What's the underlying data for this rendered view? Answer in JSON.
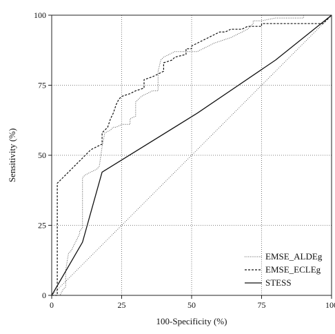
{
  "chart_data": {
    "type": "line",
    "title": "",
    "xlabel": "100-Specificity (%)",
    "ylabel": "Sensitivity (%)",
    "xlim": [
      0,
      100
    ],
    "ylim": [
      0,
      100
    ],
    "xticks": [
      "0",
      "25",
      "50",
      "75",
      "100"
    ],
    "yticks": [
      "0",
      "25",
      "50",
      "75",
      "100"
    ],
    "grid": true,
    "legend_position": "bottom-right",
    "reference_line": {
      "x": [
        0,
        100
      ],
      "y": [
        0,
        100
      ]
    },
    "series": [
      {
        "name": "EMSE_ALDEg",
        "style": "dotted",
        "x": [
          0,
          3,
          4,
          5,
          5,
          6,
          7,
          8,
          9,
          10,
          10,
          11,
          11,
          12,
          14,
          16,
          17,
          18,
          19,
          21,
          22,
          23,
          25,
          28,
          28,
          30,
          30,
          32,
          34,
          36,
          38,
          38,
          39,
          40,
          42,
          44,
          48,
          50,
          52,
          54,
          56,
          58,
          61,
          64,
          66,
          68,
          70,
          71,
          72,
          72,
          75,
          80,
          90,
          90,
          100
        ],
        "y": [
          0,
          0,
          2,
          3,
          9,
          15,
          16,
          18,
          20,
          22,
          23,
          24,
          42,
          43,
          44,
          45,
          46,
          53,
          58,
          59,
          60,
          60,
          61,
          61,
          63,
          64,
          69,
          71,
          72,
          73,
          73,
          80,
          84,
          85,
          86,
          87,
          87,
          87,
          87,
          88,
          89,
          90,
          91,
          92,
          93,
          94,
          95,
          96,
          97,
          98,
          98,
          99,
          99,
          100,
          100
        ]
      },
      {
        "name": "EMSE_ECLEg",
        "style": "dashed",
        "x": [
          0,
          2,
          2,
          3,
          4,
          5,
          6,
          7,
          8,
          9,
          10,
          11,
          12,
          13,
          14,
          16,
          18,
          18,
          20,
          21,
          22,
          23,
          24,
          25,
          28,
          30,
          33,
          33,
          36,
          38,
          40,
          40,
          43,
          44,
          48,
          48,
          50,
          50,
          52,
          54,
          56,
          58,
          60,
          62,
          64,
          66,
          68,
          70,
          72,
          75,
          75,
          97,
          100
        ],
        "y": [
          0,
          0,
          40,
          41,
          42,
          43,
          44,
          45,
          46,
          47,
          48,
          49,
          50,
          51,
          52,
          53,
          54,
          58,
          60,
          63,
          65,
          68,
          70,
          71,
          72,
          73,
          74,
          77,
          78,
          79,
          80,
          83,
          84,
          85,
          86,
          88,
          88,
          89,
          90,
          91,
          92,
          93,
          94,
          94,
          95,
          95,
          95,
          96,
          96,
          96,
          97,
          97,
          100
        ]
      },
      {
        "name": "STESS",
        "style": "solid",
        "x": [
          0,
          11,
          18,
          52,
          80,
          100
        ],
        "y": [
          0,
          19,
          44,
          65,
          84,
          100
        ]
      }
    ]
  }
}
